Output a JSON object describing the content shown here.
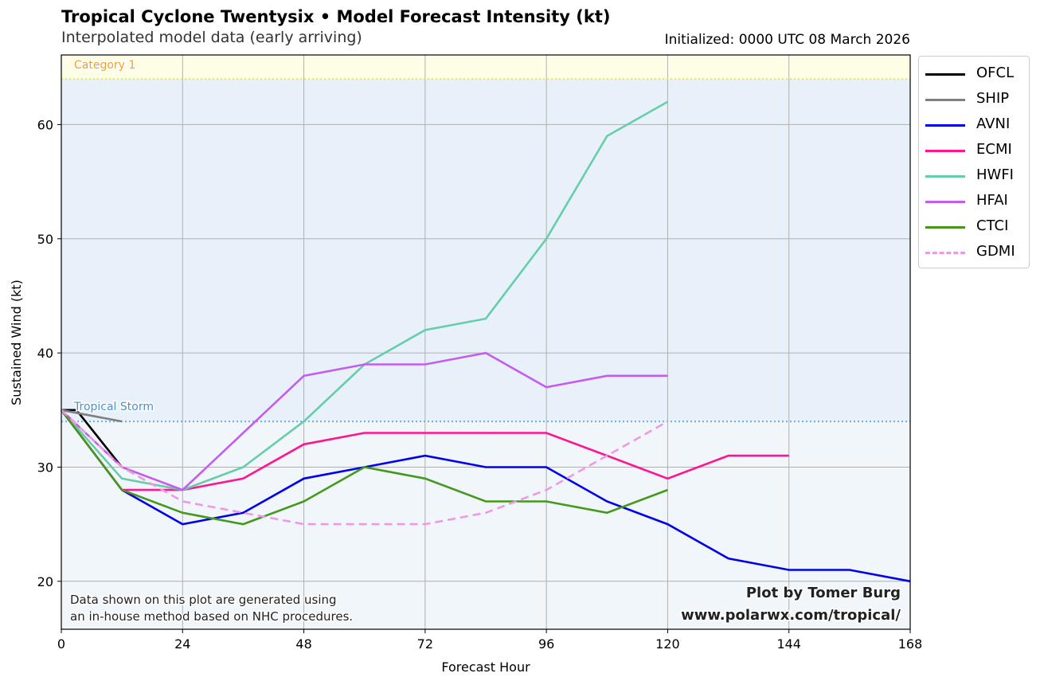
{
  "header": {
    "title": "Tropical Cyclone Twentysix • Model Forecast Intensity (kt)",
    "subtitle": "Interpolated model data (early arriving)",
    "initialized": "Initialized: 0000 UTC 08 March 2026"
  },
  "chart_data": {
    "type": "line",
    "title": "Tropical Cyclone Twentysix • Model Forecast Intensity (kt)",
    "subtitle": "Interpolated model data (early arriving)",
    "xlabel": "Forecast Hour",
    "ylabel": "Sustained Wind (kt)",
    "xlim": [
      0,
      168
    ],
    "ylim": [
      15.8,
      66.1
    ],
    "xticks": [
      0,
      24,
      48,
      72,
      96,
      120,
      144,
      168
    ],
    "yticks": [
      20,
      30,
      40,
      50,
      60
    ],
    "grid": true,
    "legend_position": "outside-right-top",
    "thresholds": [
      {
        "label": "Category 1",
        "value": 64,
        "color": "#f0a030",
        "line_color": "#e8e86a",
        "fill": "#fefee6"
      },
      {
        "label": "Tropical Storm",
        "value": 34,
        "color": "#4a90d0",
        "line_color": "#6aaee0",
        "fill": "#e8f1f9"
      }
    ],
    "below_fill": "#f1f6fb",
    "series": [
      {
        "name": "OFCL",
        "color": "#000000",
        "dash": false,
        "x": [
          0,
          3,
          12
        ],
        "values": [
          35,
          35,
          30
        ]
      },
      {
        "name": "SHIP",
        "color": "#808080",
        "dash": false,
        "x": [
          0,
          12
        ],
        "values": [
          35,
          34
        ]
      },
      {
        "name": "AVNI",
        "color": "#0000ee",
        "dash": false,
        "x": [
          0,
          12,
          24,
          36,
          48,
          60,
          72,
          84,
          96,
          108,
          120,
          132,
          144,
          156,
          168
        ],
        "values": [
          35,
          28,
          25,
          26,
          29,
          30,
          31,
          30,
          30,
          27,
          25,
          22,
          21,
          21,
          20
        ]
      },
      {
        "name": "ECMI",
        "color": "#ff1493",
        "dash": false,
        "x": [
          0,
          12,
          24,
          36,
          48,
          60,
          72,
          84,
          96,
          108,
          120,
          132,
          144
        ],
        "values": [
          35,
          28,
          28,
          29,
          32,
          33,
          33,
          33,
          33,
          31,
          29,
          31,
          31
        ]
      },
      {
        "name": "HWFI",
        "color": "#66cdaa",
        "dash": false,
        "x": [
          0,
          12,
          24,
          36,
          48,
          60,
          72,
          84,
          96,
          108,
          120
        ],
        "values": [
          35,
          29,
          28,
          30,
          34,
          39,
          42,
          43,
          50,
          59,
          62
        ]
      },
      {
        "name": "HFAI",
        "color": "#c55cf0",
        "dash": false,
        "x": [
          0,
          12,
          24,
          36,
          48,
          60,
          72,
          84,
          96,
          108,
          120
        ],
        "values": [
          35,
          30,
          28,
          33,
          38,
          39,
          39,
          40,
          37,
          38,
          38
        ]
      },
      {
        "name": "CTCI",
        "color": "#44991a",
        "dash": false,
        "x": [
          0,
          12,
          24,
          36,
          48,
          60,
          72,
          84,
          96,
          108,
          120
        ],
        "values": [
          35,
          28,
          26,
          25,
          27,
          30,
          29,
          27,
          27,
          26,
          28
        ]
      },
      {
        "name": "GDMI",
        "color": "#ee99e6",
        "dash": true,
        "x": [
          0,
          12,
          24,
          36,
          48,
          60,
          72,
          84,
          96,
          108,
          120
        ],
        "values": [
          35,
          30,
          27,
          26,
          25,
          25,
          25,
          26,
          28,
          31,
          34
        ]
      }
    ],
    "annotations": {
      "disclaimer": [
        "Data shown on this plot are generated using",
        "an in-house method based on NHC procedures."
      ],
      "credit": [
        "Plot by Tomer Burg",
        "www.polarwx.com/tropical/"
      ]
    }
  }
}
